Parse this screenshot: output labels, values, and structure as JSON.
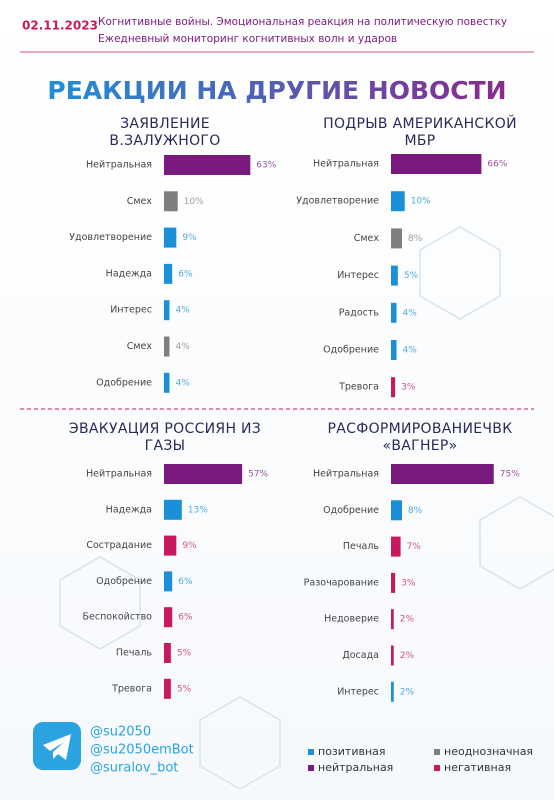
{
  "header": {
    "date": "02.11.2023",
    "lines": [
      "Когнитивные войны. Эмоциональная реакция на политическую повестку",
      "Ежедневный мониторинг когнитивных волн и ударов"
    ]
  },
  "title": "РЕАКЦИИ НА ДРУГИЕ НОВОСТИ",
  "chart_data": [
    {
      "type": "bar",
      "title": "ЗАЯВЛЕНИЕ В.ЗАЛУЖНОГО",
      "categories": [
        "Нейтральная",
        "Смех",
        "Удовлетворение",
        "Надежда",
        "Интерес",
        "Смех",
        "Одобрение"
      ],
      "values": [
        63,
        10,
        9,
        6,
        4,
        4,
        4
      ],
      "value_labels": [
        "63%",
        "10%",
        "9%",
        "6%",
        "4%",
        "4%",
        "4%"
      ],
      "colors": [
        "#7b1a7e",
        "#7f7f7f",
        "#1b8fd8",
        "#1b8fd8",
        "#1b8fd8",
        "#7f7f7f",
        "#1b8fd8"
      ]
    },
    {
      "type": "bar",
      "title": "ПОДРЫВ АМЕРИКАНСКОЙ МБР",
      "categories": [
        "Нейтральная",
        "Удовлетворение",
        "Смех",
        "Интерес",
        "Радость",
        "Одобрение",
        "Тревога"
      ],
      "values": [
        66,
        10,
        8,
        5,
        4,
        4,
        3
      ],
      "value_labels": [
        "66%",
        "10%",
        "8%",
        "5%",
        "4%",
        "4%",
        "3%"
      ],
      "colors": [
        "#7b1a7e",
        "#1b8fd8",
        "#7f7f7f",
        "#1b8fd8",
        "#1b8fd8",
        "#1b8fd8",
        "#c8195e"
      ]
    },
    {
      "type": "bar",
      "title": "ЭВАКУАЦИЯ РОССИЯН ИЗ ГАЗЫ",
      "categories": [
        "Нейтральная",
        "Надежда",
        "Сострадание",
        "Одобрение",
        "Беспокойство",
        "Печаль",
        "Тревога"
      ],
      "values": [
        57,
        13,
        9,
        6,
        6,
        5,
        5
      ],
      "value_labels": [
        "57%",
        "13%",
        "9%",
        "6%",
        "6%",
        "5%",
        "5%"
      ],
      "colors": [
        "#7b1a7e",
        "#1b8fd8",
        "#c8195e",
        "#1b8fd8",
        "#c8195e",
        "#c8195e",
        "#c8195e"
      ]
    },
    {
      "type": "bar",
      "title": "РАСФОРМИРОВАНИЕЧВК «ВАГНЕР»",
      "categories": [
        "Нейтральная",
        "Одобрение",
        "Печаль",
        "Разочарование",
        "Недоверие",
        "Досада",
        "Интерес"
      ],
      "values": [
        75,
        8,
        7,
        3,
        2,
        2,
        2
      ],
      "value_labels": [
        "75%",
        "8%",
        "7%",
        "3%",
        "2%",
        "2%",
        "2%"
      ],
      "colors": [
        "#7b1a7e",
        "#1b8fd8",
        "#c8195e",
        "#c8195e",
        "#c8195e",
        "#c8195e",
        "#1b8fd8"
      ]
    }
  ],
  "legend": [
    {
      "name": "позитивная",
      "color": "#1b8fd8"
    },
    {
      "name": "неоднозначная",
      "color": "#7f7f7f"
    },
    {
      "name": "нейтральная",
      "color": "#7b1a7e"
    },
    {
      "name": "негативная",
      "color": "#c8195e"
    }
  ],
  "footer": {
    "handles": [
      "@su2050",
      "@su2050emBot",
      "@suralov_bot"
    ]
  }
}
